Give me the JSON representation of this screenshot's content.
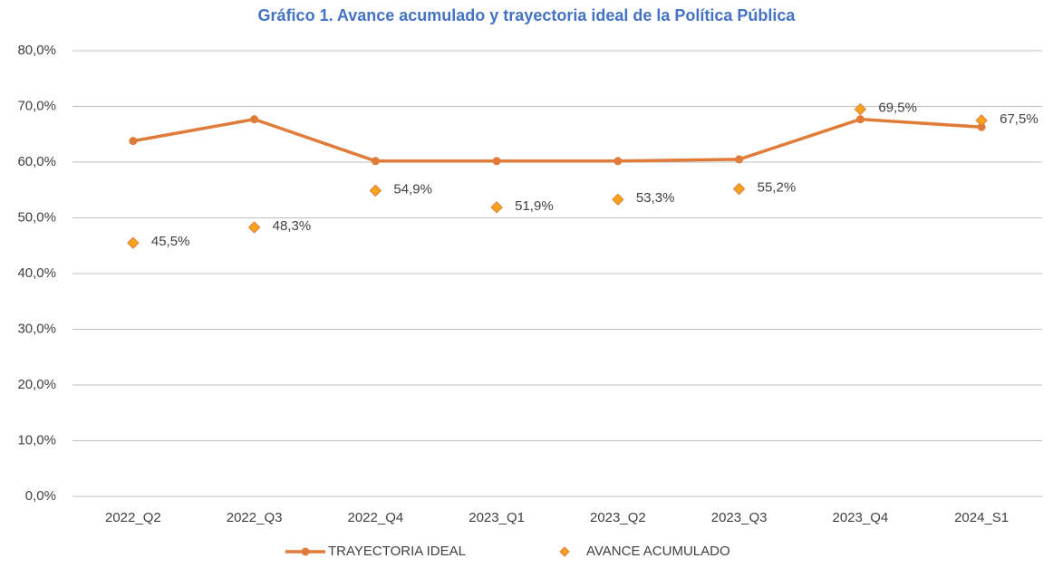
{
  "chart_data": {
    "type": "line",
    "title": "Gráfico 1. Avance acumulado y trayectoria ideal de la Política Pública",
    "categories": [
      "2022_Q2",
      "2022_Q3",
      "2022_Q4",
      "2023_Q1",
      "2023_Q2",
      "2023_Q3",
      "2023_Q4",
      "2024_S1"
    ],
    "series": [
      {
        "name": "TRAYECTORIA IDEAL",
        "color": "#e07b39",
        "line": true,
        "marker": "circle",
        "values": [
          63.8,
          67.7,
          60.2,
          60.2,
          60.2,
          60.5,
          67.7,
          66.3
        ]
      },
      {
        "name": "AVANCE ACUMULADO",
        "color": "#f5a31a",
        "line": false,
        "marker": "diamond",
        "values": [
          45.5,
          48.3,
          54.9,
          51.9,
          53.3,
          55.2,
          69.5,
          67.5
        ],
        "value_labels": [
          "45,5%",
          "48,3%",
          "54,9%",
          "51,9%",
          "53,3%",
          "55,2%",
          "69,5%",
          "67,5%"
        ]
      }
    ],
    "ylim": [
      0,
      80
    ],
    "yticks": [
      {
        "value": 0,
        "label": "0,0%"
      },
      {
        "value": 10,
        "label": "10,0%"
      },
      {
        "value": 20,
        "label": "20,0%"
      },
      {
        "value": 30,
        "label": "30,0%"
      },
      {
        "value": 40,
        "label": "40,0%"
      },
      {
        "value": 50,
        "label": "50,0%"
      },
      {
        "value": 60,
        "label": "60,0%"
      },
      {
        "value": 70,
        "label": "70,0%"
      },
      {
        "value": 80,
        "label": "80,0%"
      }
    ],
    "grid": true,
    "legend": "bottom"
  }
}
